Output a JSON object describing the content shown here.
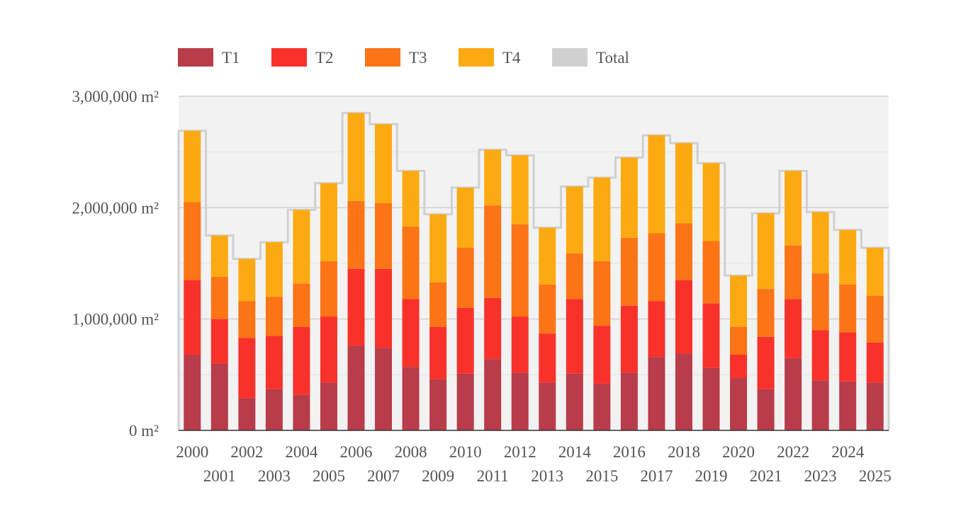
{
  "chart_data": {
    "type": "bar",
    "stacked": true,
    "title": "",
    "xlabel": "",
    "ylabel": "",
    "y_unit": " m²",
    "ylim": [
      0,
      3000000
    ],
    "yticks": [
      0,
      1000000,
      2000000,
      3000000
    ],
    "ytick_labels": [
      "0 m²",
      "1,000,000 m²",
      "2,000,000 m²",
      "3,000,000 m²"
    ],
    "legend_position": "top",
    "categories": [
      "2000",
      "2001",
      "2002",
      "2003",
      "2004",
      "2005",
      "2006",
      "2007",
      "2008",
      "2009",
      "2010",
      "2011",
      "2012",
      "2013",
      "2014",
      "2015",
      "2016",
      "2017",
      "2018",
      "2019",
      "2020",
      "2021",
      "2022",
      "2023",
      "2024",
      "2025"
    ],
    "series": [
      {
        "name": "T1",
        "color": "#b83c4a",
        "values": [
          680000,
          600000,
          290000,
          370000,
          320000,
          430000,
          760000,
          740000,
          570000,
          460000,
          510000,
          640000,
          520000,
          430000,
          510000,
          420000,
          520000,
          660000,
          690000,
          560000,
          470000,
          370000,
          650000,
          450000,
          440000,
          430000
        ]
      },
      {
        "name": "T2",
        "color": "#f9312b",
        "values": [
          670000,
          400000,
          540000,
          480000,
          610000,
          590000,
          690000,
          710000,
          610000,
          470000,
          590000,
          550000,
          500000,
          440000,
          670000,
          520000,
          600000,
          500000,
          660000,
          580000,
          210000,
          470000,
          530000,
          450000,
          440000,
          360000
        ]
      },
      {
        "name": "T3",
        "color": "#fb7416",
        "values": [
          700000,
          380000,
          330000,
          350000,
          390000,
          500000,
          610000,
          590000,
          650000,
          400000,
          540000,
          830000,
          830000,
          440000,
          410000,
          580000,
          610000,
          610000,
          510000,
          560000,
          250000,
          430000,
          480000,
          510000,
          430000,
          420000
        ]
      },
      {
        "name": "T4",
        "color": "#fdaa12",
        "values": [
          640000,
          370000,
          380000,
          490000,
          660000,
          700000,
          790000,
          710000,
          500000,
          610000,
          540000,
          500000,
          620000,
          510000,
          600000,
          750000,
          720000,
          880000,
          720000,
          700000,
          460000,
          680000,
          670000,
          550000,
          490000,
          430000
        ]
      }
    ],
    "total": {
      "name": "Total",
      "color": "#d0d0d0",
      "values": [
        2690000,
        1750000,
        1540000,
        1690000,
        1980000,
        2220000,
        2850000,
        2750000,
        2330000,
        1940000,
        2180000,
        2520000,
        2470000,
        1820000,
        2190000,
        2270000,
        2450000,
        2650000,
        2580000,
        2400000,
        1390000,
        1950000,
        2330000,
        1960000,
        1800000,
        1640000
      ]
    }
  }
}
